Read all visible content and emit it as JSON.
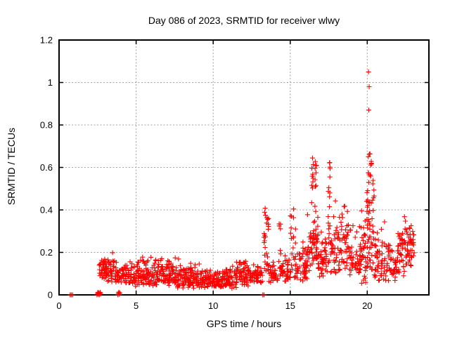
{
  "chart_data": {
    "type": "scatter",
    "title": "Day 086 of 2023, SRMTID for receiver wlwy",
    "xlabel": "GPS time / hours",
    "ylabel": "SRMTID / TECUs",
    "xlim": [
      0,
      24
    ],
    "ylim": [
      0,
      1.2
    ],
    "xticks": [
      0,
      5,
      10,
      15,
      20
    ],
    "xtick_labels": [
      "0",
      "5",
      "10",
      "15",
      "20"
    ],
    "yticks": [
      0,
      0.2,
      0.4,
      0.6,
      0.8,
      1,
      1.2
    ],
    "ytick_labels": [
      "0",
      "0.2",
      "0.4",
      "0.6",
      "0.8",
      "1",
      "1.2"
    ],
    "grid": true,
    "grid_style": "dashed",
    "grid_color": "#a0a0a0",
    "frame_color": "#000000",
    "marker": "plus",
    "marker_color": "#ff0000",
    "marker_size_px": 7,
    "background": "#ffffff",
    "series_name": "SRMTID",
    "data_x_start": 0.7,
    "data_x_end": 23.05,
    "zero_points": [
      [
        0.72,
        0
      ],
      [
        0.79,
        0
      ],
      [
        0.88,
        0
      ],
      [
        2.46,
        0
      ],
      [
        2.49,
        0.006
      ],
      [
        2.52,
        0.012
      ],
      [
        2.55,
        0.003
      ],
      [
        2.58,
        0.009
      ],
      [
        2.61,
        0
      ],
      [
        2.64,
        0.007
      ],
      [
        2.67,
        0.012
      ],
      [
        2.7,
        0.004
      ],
      [
        3.82,
        0
      ],
      [
        3.85,
        0.008
      ],
      [
        3.88,
        0.013
      ],
      [
        3.91,
        0.003
      ],
      [
        3.94,
        0.009
      ],
      [
        13.22,
        0
      ],
      [
        13.3,
        0
      ]
    ],
    "outliers": [
      [
        20.08,
        1.05
      ],
      [
        20.12,
        0.98
      ],
      [
        20.1,
        0.87
      ]
    ],
    "bands": [
      {
        "x0": 2.6,
        "x1": 3.0,
        "n": 32,
        "ymin": 0.07,
        "ymax": 0.18,
        "bias": 1.3
      },
      {
        "x0": 3.0,
        "x1": 3.6,
        "n": 48,
        "ymin": 0.06,
        "ymax": 0.21,
        "bias": 1.5
      },
      {
        "x0": 3.6,
        "x1": 4.4,
        "n": 52,
        "ymin": 0.05,
        "ymax": 0.16,
        "bias": 1.4
      },
      {
        "x0": 4.4,
        "x1": 5.2,
        "n": 52,
        "ymin": 0.04,
        "ymax": 0.18,
        "bias": 1.4
      },
      {
        "x0": 5.2,
        "x1": 6.0,
        "n": 56,
        "ymin": 0.04,
        "ymax": 0.2,
        "bias": 1.5
      },
      {
        "x0": 6.0,
        "x1": 6.8,
        "n": 56,
        "ymin": 0.04,
        "ymax": 0.19,
        "bias": 1.5
      },
      {
        "x0": 6.8,
        "x1": 7.6,
        "n": 56,
        "ymin": 0.04,
        "ymax": 0.19,
        "bias": 1.5
      },
      {
        "x0": 7.6,
        "x1": 8.4,
        "n": 56,
        "ymin": 0.03,
        "ymax": 0.18,
        "bias": 1.5
      },
      {
        "x0": 8.4,
        "x1": 9.2,
        "n": 56,
        "ymin": 0.03,
        "ymax": 0.17,
        "bias": 1.5
      },
      {
        "x0": 9.2,
        "x1": 10.0,
        "n": 56,
        "ymin": 0.03,
        "ymax": 0.13,
        "bias": 1.4
      },
      {
        "x0": 10.0,
        "x1": 10.8,
        "n": 56,
        "ymin": 0.03,
        "ymax": 0.13,
        "bias": 1.4
      },
      {
        "x0": 10.8,
        "x1": 11.6,
        "n": 56,
        "ymin": 0.03,
        "ymax": 0.16,
        "bias": 1.5
      },
      {
        "x0": 11.6,
        "x1": 12.4,
        "n": 56,
        "ymin": 0.04,
        "ymax": 0.19,
        "bias": 1.5
      },
      {
        "x0": 12.4,
        "x1": 13.2,
        "n": 50,
        "ymin": 0.05,
        "ymax": 0.16,
        "bias": 1.4
      },
      {
        "x0": 13.3,
        "x1": 13.6,
        "n": 28,
        "ymin": 0.1,
        "ymax": 0.42,
        "bias": 1.2
      },
      {
        "x0": 13.6,
        "x1": 14.2,
        "n": 32,
        "ymin": 0.05,
        "ymax": 0.16,
        "bias": 1.4
      },
      {
        "x0": 14.2,
        "x1": 14.5,
        "n": 16,
        "ymin": 0.08,
        "ymax": 0.35,
        "bias": 1.2
      },
      {
        "x0": 14.5,
        "x1": 15.0,
        "n": 30,
        "ymin": 0.05,
        "ymax": 0.2,
        "bias": 1.4
      },
      {
        "x0": 15.0,
        "x1": 15.35,
        "n": 24,
        "ymin": 0.08,
        "ymax": 0.44,
        "bias": 1.2
      },
      {
        "x0": 15.35,
        "x1": 16.1,
        "n": 48,
        "ymin": 0.06,
        "ymax": 0.32,
        "bias": 1.7
      },
      {
        "x0": 16.1,
        "x1": 16.3,
        "n": 14,
        "ymin": 0.1,
        "ymax": 0.38,
        "bias": 1.3
      },
      {
        "x0": 16.3,
        "x1": 16.8,
        "n": 50,
        "ymin": 0.12,
        "ymax": 0.5,
        "bias": 1.3
      },
      {
        "x0": 16.38,
        "x1": 16.5,
        "n": 10,
        "ymin": 0.5,
        "ymax": 0.65,
        "bias": 1.0
      },
      {
        "x0": 16.6,
        "x1": 16.72,
        "n": 8,
        "ymin": 0.48,
        "ymax": 0.63,
        "bias": 1.0
      },
      {
        "x0": 16.8,
        "x1": 17.4,
        "n": 45,
        "ymin": 0.08,
        "ymax": 0.36,
        "bias": 1.6
      },
      {
        "x0": 17.45,
        "x1": 17.62,
        "n": 15,
        "ymin": 0.15,
        "ymax": 0.5,
        "bias": 1.2
      },
      {
        "x0": 17.5,
        "x1": 17.6,
        "n": 6,
        "ymin": 0.5,
        "ymax": 0.63,
        "bias": 1.0
      },
      {
        "x0": 17.62,
        "x1": 18.3,
        "n": 48,
        "ymin": 0.1,
        "ymax": 0.5,
        "bias": 1.8
      },
      {
        "x0": 18.3,
        "x1": 18.8,
        "n": 38,
        "ymin": 0.12,
        "ymax": 0.52,
        "bias": 1.5
      },
      {
        "x0": 18.8,
        "x1": 19.6,
        "n": 52,
        "ymin": 0.08,
        "ymax": 0.36,
        "bias": 1.5
      },
      {
        "x0": 19.6,
        "x1": 19.95,
        "n": 28,
        "ymin": 0.05,
        "ymax": 0.45,
        "bias": 1.5
      },
      {
        "x0": 19.95,
        "x1": 20.45,
        "n": 55,
        "ymin": 0.12,
        "ymax": 0.55,
        "bias": 1.2
      },
      {
        "x0": 20.05,
        "x1": 20.3,
        "n": 12,
        "ymin": 0.55,
        "ymax": 0.68,
        "bias": 1.0
      },
      {
        "x0": 20.45,
        "x1": 21.2,
        "n": 52,
        "ymin": 0.06,
        "ymax": 0.35,
        "bias": 1.7
      },
      {
        "x0": 21.2,
        "x1": 21.9,
        "n": 42,
        "ymin": 0.06,
        "ymax": 0.28,
        "bias": 1.5
      },
      {
        "x0": 21.9,
        "x1": 22.4,
        "n": 38,
        "ymin": 0.08,
        "ymax": 0.33,
        "bias": 1.4
      },
      {
        "x0": 22.4,
        "x1": 22.85,
        "n": 38,
        "ymin": 0.1,
        "ymax": 0.4,
        "bias": 1.4
      },
      {
        "x0": 22.85,
        "x1": 23.05,
        "n": 12,
        "ymin": 0.12,
        "ymax": 0.3,
        "bias": 1.2
      }
    ]
  }
}
